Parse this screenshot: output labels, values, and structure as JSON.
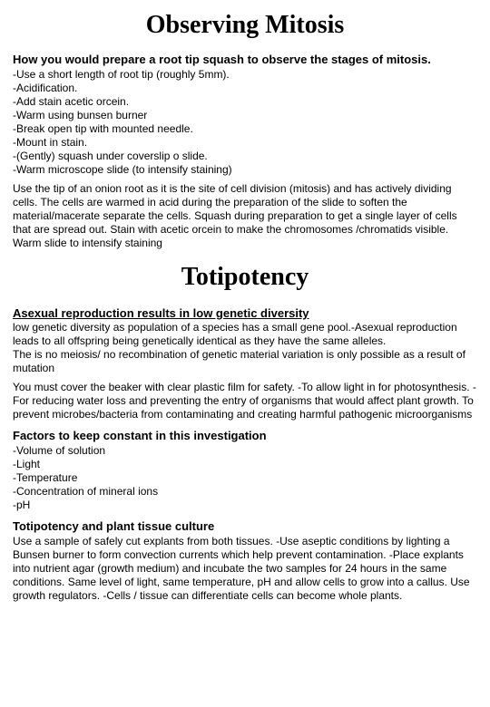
{
  "title1": "Observing Mitosis",
  "section1": {
    "heading": "How you would prepare a root tip squash to observe the stages of mitosis.",
    "items": [
      "-Use a short length of root tip (roughly 5mm).",
      "-Acidification.",
      "-Add stain acetic orcein.",
      "-Warm using bunsen burner",
      "-Break open tip with mounted needle.",
      "-Mount in stain.",
      "-(Gently) squash under coverslip o slide.",
      "-Warm microscope slide (to intensify staining)"
    ],
    "paragraph": "Use the tip of an onion root as it is the site of cell division (mitosis) and has actively dividing cells. The cells are warmed in acid during the preparation of the slide to soften the material/macerate separate the cells. Squash during preparation to get a single layer of cells that are spread out. Stain with acetic orcein to make the chromosomes /chromatids visible. Warm slide to intensify staining"
  },
  "title2": "Totipotency",
  "section2": {
    "heading": "Asexual reproduction results in low genetic diversity",
    "paragraph1": "low genetic diversity as population of a species  has a small gene pool.-Asexual reproduction leads to all offspring being genetically identical as they have the same alleles.\nThe is no meiosis/ no recombination of genetic material variation  is only possible as a result of mutation",
    "paragraph2": "You must cover the beaker with clear plastic film for safety. -To allow light in for photosynthesis. -For reducing water loss and preventing the entry of organisms that would affect plant growth. To prevent microbes/bacteria from contaminating and creating harmful pathogenic microorganisms"
  },
  "section3": {
    "heading": "Factors to keep constant in this investigation",
    "items": [
      "-Volume of solution",
      "-Light",
      "-Temperature",
      "-Concentration of  mineral ions",
      "-pH"
    ]
  },
  "section4": {
    "heading": "Totipotency and plant tissue culture",
    "paragraph": "Use a sample of safely cut explants from both tissues. -Use aseptic conditions  by lighting a Bunsen burner to form convection currents which help prevent contamination. -Place explants into nutrient agar (growth medium) and incubate the two samples for 24 hours in the same conditions. Same level of light, same temperature, pH and allow cells to grow into a callus. Use growth regulators. -Cells / tissue can differentiate cells can become whole plants."
  }
}
